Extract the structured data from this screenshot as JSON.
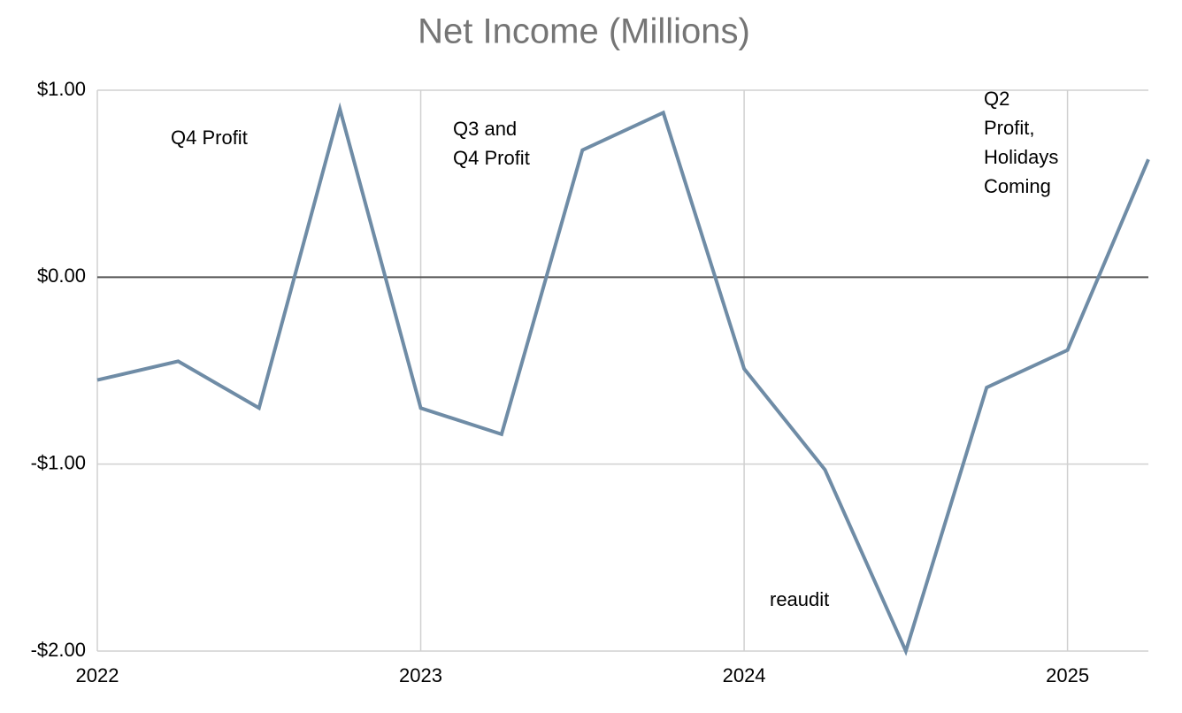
{
  "chart_data": {
    "type": "line",
    "title": "Net Income (Millions)",
    "x": [
      2022,
      2022.25,
      2022.5,
      2022.75,
      2023,
      2023.25,
      2023.5,
      2023.75,
      2024,
      2024.25,
      2024.5,
      2024.75,
      2025,
      2025.25
    ],
    "values": [
      -0.55,
      -0.45,
      -0.7,
      0.9,
      -0.7,
      -0.84,
      0.68,
      0.88,
      -0.49,
      -1.03,
      -2.0,
      -0.59,
      -0.39,
      0.63
    ],
    "color": "#6f8ca6",
    "xlim": [
      2022,
      2025.25
    ],
    "xticks": [
      2022,
      2023,
      2024,
      2025
    ],
    "ylim": [
      -2,
      1
    ],
    "yticks": [
      {
        "value": -2,
        "label": "-$2.00"
      },
      {
        "value": -1,
        "label": "-$1.00"
      },
      {
        "value": 0,
        "label": "$0.00"
      },
      {
        "value": 1,
        "label": "$1.00"
      }
    ],
    "grid": true,
    "annotations": [
      [
        "Q4 Profit"
      ],
      [
        "Q3 and",
        "Q4 Profit"
      ],
      [
        "Q2",
        "Profit,",
        "Holidays",
        "Coming"
      ],
      [
        "reaudit"
      ]
    ]
  }
}
